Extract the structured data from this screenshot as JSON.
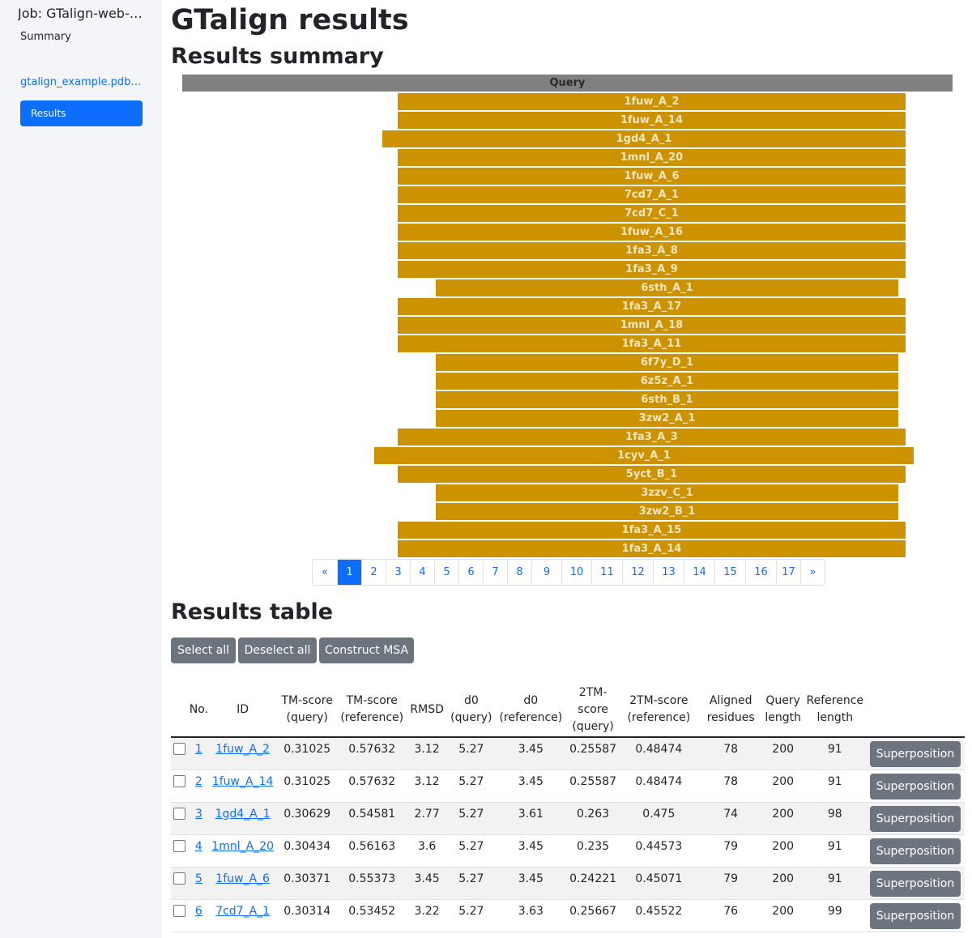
{
  "sidebar": {
    "job_title": "Job: GTalign-web-example",
    "summary_label": "Summary",
    "file_label": "gtalign_example.pdb.gz",
    "results_label": "Results"
  },
  "main": {
    "title": "GTalign results",
    "summary_heading": "Results summary",
    "table_heading": "Results table"
  },
  "summary": {
    "query_label": "Query",
    "query_color": "#808080",
    "hit_color": "#cc9200",
    "hits": [
      {
        "label": "1fuw_A_2"
      },
      {
        "label": "1fuw_A_14"
      },
      {
        "label": "1gd4_A_1"
      },
      {
        "label": "1mnl_A_20"
      },
      {
        "label": "1fuw_A_6"
      },
      {
        "label": "7cd7_A_1"
      },
      {
        "label": "7cd7_C_1"
      },
      {
        "label": "1fuw_A_16"
      },
      {
        "label": "1fa3_A_8"
      },
      {
        "label": "1fa3_A_9"
      },
      {
        "label": "6sth_A_1"
      },
      {
        "label": "1fa3_A_17"
      },
      {
        "label": "1mnl_A_18"
      },
      {
        "label": "1fa3_A_11"
      },
      {
        "label": "6f7y_D_1"
      },
      {
        "label": "6z5z_A_1"
      },
      {
        "label": "6sth_B_1"
      },
      {
        "label": "3zw2_A_1"
      },
      {
        "label": "1fa3_A_3"
      },
      {
        "label": "1cyv_A_1"
      },
      {
        "label": "5yct_B_1"
      },
      {
        "label": "3zzv_C_1"
      },
      {
        "label": "3zw2_B_1"
      },
      {
        "label": "1fa3_A_15"
      },
      {
        "label": "1fa3_A_14"
      }
    ]
  },
  "pagination": {
    "prev": "«",
    "next": "»",
    "pages": [
      "1",
      "2",
      "3",
      "4",
      "5",
      "6",
      "7",
      "8",
      "9",
      "10",
      "11",
      "12",
      "13",
      "14",
      "15",
      "16",
      "17"
    ],
    "active_page": "1"
  },
  "buttons": {
    "select_all": "Select all",
    "deselect_all": "Deselect all",
    "construct_msa": "Construct MSA"
  },
  "table": {
    "headers": {
      "no": "No.",
      "id": "ID",
      "tm_query": "TM-score (query)",
      "tm_reference": "TM-score (reference)",
      "rmsd": "RMSD",
      "d0_query": "d0 (query)",
      "d0_reference": "d0 (reference)",
      "tm2_query": "2TM-score (query)",
      "tm2_reference": "2TM-score (reference)",
      "aligned": "Aligned residues",
      "query_length": "Query length",
      "reference_length": "Reference length"
    },
    "action_label": "Superposition",
    "rows": [
      {
        "no": "1",
        "id": "1fuw_A_2",
        "tm_q": "0.31025",
        "tm_r": "0.57632",
        "rmsd": "3.12",
        "d0_q": "5.27",
        "d0_r": "3.45",
        "tm2_q": "0.25587",
        "tm2_r": "0.48474",
        "aligned": "78",
        "qlen": "200",
        "rlen": "91"
      },
      {
        "no": "2",
        "id": "1fuw_A_14",
        "tm_q": "0.31025",
        "tm_r": "0.57632",
        "rmsd": "3.12",
        "d0_q": "5.27",
        "d0_r": "3.45",
        "tm2_q": "0.25587",
        "tm2_r": "0.48474",
        "aligned": "78",
        "qlen": "200",
        "rlen": "91"
      },
      {
        "no": "3",
        "id": "1gd4_A_1",
        "tm_q": "0.30629",
        "tm_r": "0.54581",
        "rmsd": "2.77",
        "d0_q": "5.27",
        "d0_r": "3.61",
        "tm2_q": "0.263",
        "tm2_r": "0.475",
        "aligned": "74",
        "qlen": "200",
        "rlen": "98"
      },
      {
        "no": "4",
        "id": "1mnl_A_20",
        "tm_q": "0.30434",
        "tm_r": "0.56163",
        "rmsd": "3.6",
        "d0_q": "5.27",
        "d0_r": "3.45",
        "tm2_q": "0.235",
        "tm2_r": "0.44573",
        "aligned": "79",
        "qlen": "200",
        "rlen": "91"
      },
      {
        "no": "5",
        "id": "1fuw_A_6",
        "tm_q": "0.30371",
        "tm_r": "0.55373",
        "rmsd": "3.45",
        "d0_q": "5.27",
        "d0_r": "3.45",
        "tm2_q": "0.24221",
        "tm2_r": "0.45071",
        "aligned": "79",
        "qlen": "200",
        "rlen": "91"
      },
      {
        "no": "6",
        "id": "7cd7_A_1",
        "tm_q": "0.30314",
        "tm_r": "0.53452",
        "rmsd": "3.22",
        "d0_q": "5.27",
        "d0_r": "3.63",
        "tm2_q": "0.25667",
        "tm2_r": "0.45522",
        "aligned": "76",
        "qlen": "200",
        "rlen": "99"
      }
    ]
  }
}
